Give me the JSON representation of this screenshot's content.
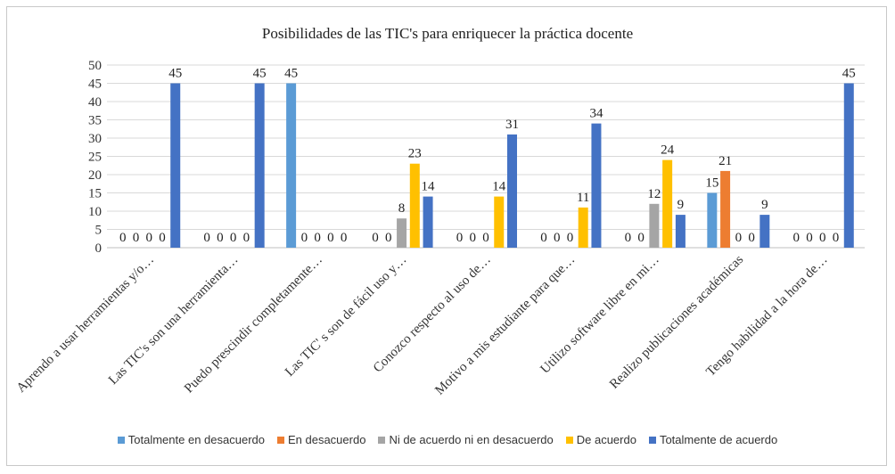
{
  "chart_data": {
    "type": "bar",
    "title": "Posibilidades de las TIC's para enriquecer la práctica docente",
    "categories": [
      "Aprendo a usar herramientas y/o…",
      "Las TIC's son una herramienta…",
      "Puedo prescindir completamente…",
      "Las TIC' s son de fácil uso y…",
      "Conozco respecto al uso de…",
      "Motivo a mis estudiante para que…",
      "Utilizo software libre en mi…",
      "Realizo publicaciones académicas",
      "Tengo habilidad a la hora de…"
    ],
    "series": [
      {
        "name": "Totalmente en desacuerdo",
        "color": "#5b9bd5",
        "values": [
          0,
          0,
          45,
          0,
          0,
          0,
          0,
          15,
          0
        ]
      },
      {
        "name": "En desacuerdo",
        "color": "#ed7d31",
        "values": [
          0,
          0,
          0,
          0,
          0,
          0,
          0,
          21,
          0
        ]
      },
      {
        "name": "Ni de acuerdo ni en desacuerdo",
        "color": "#a5a5a5",
        "values": [
          0,
          0,
          0,
          8,
          0,
          0,
          12,
          0,
          0
        ]
      },
      {
        "name": "De acuerdo",
        "color": "#ffc000",
        "values": [
          0,
          0,
          0,
          23,
          14,
          11,
          24,
          0,
          0
        ]
      },
      {
        "name": "Totalmente de acuerdo",
        "color": "#4472c4",
        "values": [
          45,
          45,
          0,
          14,
          31,
          34,
          9,
          9,
          45
        ]
      }
    ],
    "ylim": [
      0,
      50
    ],
    "yticks": [
      0,
      5,
      10,
      15,
      20,
      25,
      30,
      35,
      40,
      45,
      50
    ],
    "grid": true,
    "legend": "bottom",
    "data_labels": true
  }
}
